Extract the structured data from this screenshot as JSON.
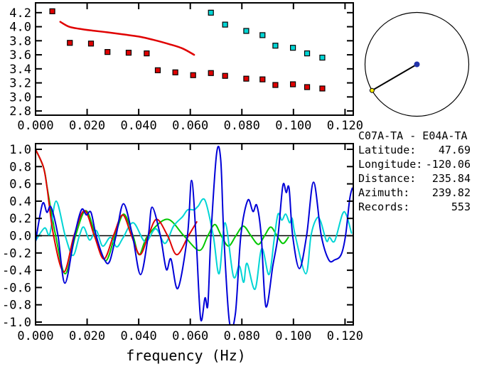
{
  "colors": {
    "red": "#e00000",
    "cyan": "#00d5d5",
    "blue": "#0000d8",
    "green": "#00c800",
    "frame": "#000000",
    "center_dot": "#2233aa",
    "end_dot": "#ffee00"
  },
  "info_panel": {
    "title": "C07A-TA - E04A-TA",
    "rows": [
      {
        "label": "Latitude:",
        "value": "47.69"
      },
      {
        "label": "Longitude:",
        "value": "-120.06"
      },
      {
        "label": "Distance:",
        "value": "235.84"
      },
      {
        "label": "Azimuth:",
        "value": "239.82"
      },
      {
        "label": "Records:",
        "value": "553"
      }
    ]
  },
  "azimuth_circle": {
    "azimuth_deg": 239.82
  },
  "chart_data": [
    {
      "name": "dispersion-picks",
      "type": "scatter",
      "xlim": [
        0,
        0.1232
      ],
      "ylim": [
        2.74,
        4.34
      ],
      "x_ticks": {
        "values": [
          0,
          0.02,
          0.04,
          0.06,
          0.08,
          0.1,
          0.12
        ],
        "labels": [
          "0.000",
          "0.020",
          "0.040",
          "0.060",
          "0.080",
          "0.100",
          "0.120"
        ]
      },
      "y_ticks": {
        "values": [
          2.8,
          3.0,
          3.2,
          3.4,
          3.6,
          3.8,
          4.0,
          4.2
        ],
        "labels": [
          "2.8",
          "3.0",
          "3.2",
          "3.4",
          "3.6",
          "3.8",
          "4.0",
          "4.2"
        ]
      },
      "xlabel": "",
      "series": [
        {
          "name": "model-dispersion-curve",
          "mode": "line",
          "color": "#e00000",
          "width": 2.5,
          "points": [
            [
              0.0096,
              4.07
            ],
            [
              0.013,
              4.0
            ],
            [
              0.017,
              3.97
            ],
            [
              0.022,
              3.945
            ],
            [
              0.028,
              3.92
            ],
            [
              0.034,
              3.89
            ],
            [
              0.04,
              3.86
            ],
            [
              0.046,
              3.81
            ],
            [
              0.052,
              3.75
            ],
            [
              0.057,
              3.69
            ],
            [
              0.0615,
              3.6
            ]
          ]
        },
        {
          "name": "red-velocity-picks",
          "mode": "scatter",
          "color": "#e00000",
          "points": [
            [
              0.0065,
              4.22
            ],
            [
              0.0133,
              3.77
            ],
            [
              0.0215,
              3.76
            ],
            [
              0.0279,
              3.64
            ],
            [
              0.0361,
              3.63
            ],
            [
              0.0431,
              3.62
            ],
            [
              0.0474,
              3.38
            ],
            [
              0.0542,
              3.35
            ],
            [
              0.0611,
              3.31
            ],
            [
              0.068,
              3.34
            ],
            [
              0.0735,
              3.3
            ],
            [
              0.0817,
              3.26
            ],
            [
              0.088,
              3.25
            ],
            [
              0.093,
              3.17
            ],
            [
              0.0998,
              3.18
            ],
            [
              0.1053,
              3.14
            ],
            [
              0.1112,
              3.12
            ]
          ]
        },
        {
          "name": "cyan-velocity-picks",
          "mode": "scatter",
          "color": "#00d5d5",
          "points": [
            [
              0.068,
              4.2
            ],
            [
              0.0735,
              4.03
            ],
            [
              0.0817,
              3.94
            ],
            [
              0.088,
              3.88
            ],
            [
              0.093,
              3.73
            ],
            [
              0.0998,
              3.7
            ],
            [
              0.1053,
              3.62
            ],
            [
              0.1112,
              3.56
            ]
          ]
        }
      ]
    },
    {
      "name": "waveforms",
      "type": "line",
      "xlim": [
        0,
        0.1232
      ],
      "ylim": [
        -1.033,
        1.066
      ],
      "x_ticks": {
        "values": [
          0,
          0.02,
          0.04,
          0.06,
          0.08,
          0.1,
          0.12
        ],
        "labels": [
          "0.000",
          "0.020",
          "0.040",
          "0.060",
          "0.080",
          "0.100",
          "0.120"
        ]
      },
      "y_ticks": {
        "values": [
          -1.0,
          -0.8,
          -0.6,
          -0.4,
          -0.2,
          0.0,
          0.2,
          0.4,
          0.6,
          0.8,
          1.0
        ],
        "labels": [
          "-1.0",
          "-0.8",
          "-0.6",
          "-0.4",
          "-0.2",
          "0.0",
          "0.2",
          "0.4",
          "0.6",
          "0.8",
          "1.0"
        ]
      },
      "xlabel": "frequency (Hz)",
      "zero_line": true,
      "series": [
        {
          "name": "green-trace",
          "mode": "line",
          "color": "#00c800",
          "width": 2,
          "points": [
            [
              0,
              1.0
            ],
            [
              0.0032,
              0.78
            ],
            [
              0.0047,
              0.52
            ],
            [
              0.0078,
              0
            ],
            [
              0.0115,
              -0.44
            ],
            [
              0.0155,
              0
            ],
            [
              0.0195,
              0.29
            ],
            [
              0.0233,
              0
            ],
            [
              0.0272,
              -0.29
            ],
            [
              0.0308,
              0
            ],
            [
              0.0342,
              0.25
            ],
            [
              0.0378,
              0
            ],
            [
              0.0402,
              -0.22
            ],
            [
              0.0435,
              0
            ],
            [
              0.051,
              0.19
            ],
            [
              0.0575,
              0
            ],
            [
              0.0635,
              -0.17
            ],
            [
              0.0668,
              0
            ],
            [
              0.0695,
              0.13
            ],
            [
              0.072,
              0
            ],
            [
              0.0748,
              -0.12
            ],
            [
              0.0777,
              0
            ],
            [
              0.0806,
              0.11
            ],
            [
              0.0835,
              0
            ],
            [
              0.0864,
              -0.1
            ],
            [
              0.0888,
              0
            ],
            [
              0.0912,
              0.1
            ],
            [
              0.0936,
              0
            ],
            [
              0.0959,
              -0.09
            ],
            [
              0.098,
              -0.02
            ]
          ]
        },
        {
          "name": "cyan-trace",
          "mode": "line",
          "color": "#00d5d5",
          "width": 2,
          "points": [
            [
              0,
              -0.06
            ],
            [
              0.0035,
              0.09
            ],
            [
              0.0055,
              0.02
            ],
            [
              0.008,
              0.4
            ],
            [
              0.0115,
              0
            ],
            [
              0.0145,
              -0.23
            ],
            [
              0.017,
              0
            ],
            [
              0.0187,
              0.1
            ],
            [
              0.021,
              -0.05
            ],
            [
              0.0235,
              0.06
            ],
            [
              0.026,
              -0.12
            ],
            [
              0.029,
              -0.02
            ],
            [
              0.0315,
              -0.13
            ],
            [
              0.034,
              -0.02
            ],
            [
              0.0379,
              0.15
            ],
            [
              0.0425,
              -0.07
            ],
            [
              0.0466,
              0.08
            ],
            [
              0.0502,
              -0.09
            ],
            [
              0.0535,
              0.11
            ],
            [
              0.057,
              0.22
            ],
            [
              0.059,
              0.3
            ],
            [
              0.0615,
              0.3
            ],
            [
              0.063,
              0.34
            ],
            [
              0.0657,
              0.41
            ],
            [
              0.0689,
              0
            ],
            [
              0.0712,
              -0.44
            ],
            [
              0.0735,
              0.15
            ],
            [
              0.0767,
              -0.47
            ],
            [
              0.079,
              -0.35
            ],
            [
              0.0807,
              -0.54
            ],
            [
              0.082,
              -0.32
            ],
            [
              0.0851,
              -0.62
            ],
            [
              0.0877,
              -0.15
            ],
            [
              0.0905,
              -0.45
            ],
            [
              0.0925,
              -0.05
            ],
            [
              0.094,
              0.25
            ],
            [
              0.0955,
              0.18
            ],
            [
              0.097,
              0.25
            ],
            [
              0.0985,
              0.15
            ],
            [
              0.0995,
              0.2
            ],
            [
              0.1007,
              0
            ],
            [
              0.1048,
              -0.44
            ],
            [
              0.1068,
              0
            ],
            [
              0.109,
              0.2
            ],
            [
              0.1105,
              0.17
            ],
            [
              0.1128,
              -0.06
            ],
            [
              0.114,
              -0.02
            ],
            [
              0.116,
              -0.06
            ],
            [
              0.119,
              0.25
            ],
            [
              0.1205,
              0.24
            ],
            [
              0.1225,
              0.03
            ]
          ]
        },
        {
          "name": "red-trace",
          "mode": "line",
          "color": "#e00000",
          "width": 2,
          "points": [
            [
              0,
              1.0
            ],
            [
              0.003,
              0.8
            ],
            [
              0.0045,
              0.55
            ],
            [
              0.007,
              0
            ],
            [
              0.011,
              -0.42
            ],
            [
              0.0149,
              0
            ],
            [
              0.019,
              0.29
            ],
            [
              0.0228,
              0
            ],
            [
              0.0265,
              -0.27
            ],
            [
              0.0302,
              0
            ],
            [
              0.0338,
              0.24
            ],
            [
              0.0372,
              0
            ],
            [
              0.0405,
              -0.22
            ],
            [
              0.0437,
              0
            ],
            [
              0.047,
              0.19
            ],
            [
              0.0512,
              0
            ],
            [
              0.0548,
              -0.22
            ],
            [
              0.0593,
              0
            ],
            [
              0.0625,
              0.16
            ]
          ]
        },
        {
          "name": "blue-trace",
          "mode": "line",
          "color": "#0000d8",
          "width": 2,
          "points": [
            [
              0,
              -0.07
            ],
            [
              0.0027,
              0.37
            ],
            [
              0.0044,
              0.27
            ],
            [
              0.006,
              0.33
            ],
            [
              0.0087,
              0
            ],
            [
              0.0114,
              -0.55
            ],
            [
              0.0151,
              0
            ],
            [
              0.0178,
              0.3
            ],
            [
              0.0197,
              0.24
            ],
            [
              0.0215,
              0.27
            ],
            [
              0.0235,
              0
            ],
            [
              0.0266,
              -0.27
            ],
            [
              0.0287,
              -0.3
            ],
            [
              0.0312,
              0
            ],
            [
              0.0341,
              0.37
            ],
            [
              0.0376,
              0
            ],
            [
              0.0407,
              -0.45
            ],
            [
              0.0437,
              0
            ],
            [
              0.0452,
              0.33
            ],
            [
              0.0484,
              0
            ],
            [
              0.0507,
              -0.39
            ],
            [
              0.0525,
              -0.27
            ],
            [
              0.0552,
              -0.61
            ],
            [
              0.0589,
              0
            ],
            [
              0.0605,
              0.64
            ],
            [
              0.0622,
              0
            ],
            [
              0.064,
              -0.96
            ],
            [
              0.0657,
              -0.72
            ],
            [
              0.0668,
              -0.8
            ],
            [
              0.068,
              0
            ],
            [
              0.0702,
              0.95
            ],
            [
              0.0718,
              0.88
            ],
            [
              0.073,
              0
            ],
            [
              0.0752,
              -1.0
            ],
            [
              0.0775,
              -0.9
            ],
            [
              0.0796,
              0
            ],
            [
              0.0823,
              0.41
            ],
            [
              0.0843,
              0.28
            ],
            [
              0.0858,
              0.35
            ],
            [
              0.0875,
              0
            ],
            [
              0.0893,
              -0.82
            ],
            [
              0.092,
              -0.35
            ],
            [
              0.094,
              0
            ],
            [
              0.0959,
              0.58
            ],
            [
              0.0972,
              0.5
            ],
            [
              0.0983,
              0.55
            ],
            [
              0.0997,
              0
            ],
            [
              0.1023,
              -0.38
            ],
            [
              0.1051,
              0
            ],
            [
              0.1078,
              0.62
            ],
            [
              0.1108,
              0
            ],
            [
              0.1137,
              -0.28
            ],
            [
              0.116,
              -0.28
            ],
            [
              0.1185,
              -0.22
            ],
            [
              0.1202,
              0
            ],
            [
              0.1218,
              0.42
            ],
            [
              0.1228,
              0.55
            ]
          ]
        }
      ]
    }
  ]
}
